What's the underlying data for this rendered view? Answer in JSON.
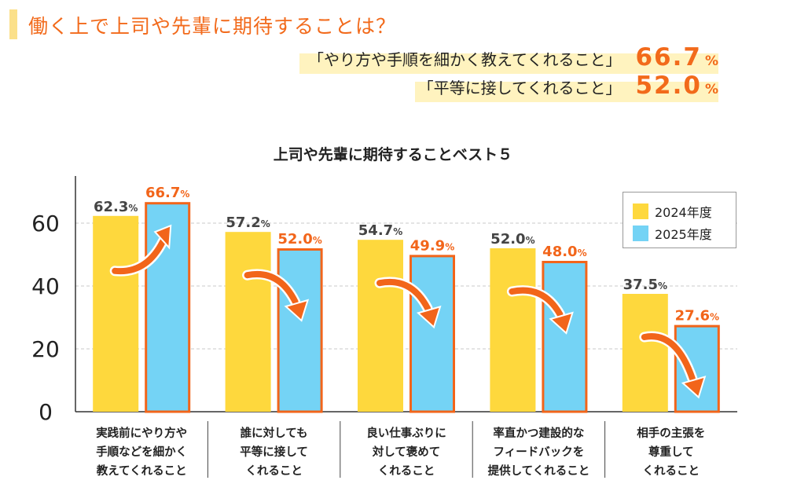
{
  "header": {
    "title": "働く上で上司や先輩に期待することは？",
    "highlights": [
      {
        "text": "「やり方や手順を細かく教えてくれること」",
        "value": "66.7",
        "unit": "%"
      },
      {
        "text": "「平等に接してくれること」",
        "value": "52.0",
        "unit": "%"
      }
    ]
  },
  "chart_data": {
    "type": "bar",
    "title": "上司や先輩に期待することベスト５",
    "categories": [
      [
        "実践前にやり方や",
        "手順などを細かく",
        "教えてくれること"
      ],
      [
        "誰に対しても",
        "平等に接して",
        "くれること"
      ],
      [
        "良い仕事ぶりに",
        "対して褒めて",
        "くれること"
      ],
      [
        "率直かつ建設的な",
        "フィードバックを",
        "提供してくれること"
      ],
      [
        "相手の主張を",
        "尊重して",
        "くれること"
      ]
    ],
    "series": [
      {
        "name": "2024年度",
        "values": [
          62.3,
          57.2,
          54.7,
          52.0,
          37.5
        ],
        "color": "#fed83d",
        "label_color": "#444444"
      },
      {
        "name": "2025年度",
        "values": [
          66.7,
          52.0,
          49.9,
          48.0,
          27.6
        ],
        "color": "#74d3f5",
        "stroke": "#f2651a",
        "label_color": "#f2651a"
      }
    ],
    "value_unit": "%",
    "yticks": [
      0,
      20,
      40,
      60
    ],
    "ylim": [
      0,
      74
    ],
    "grid": true,
    "legend_position": "top-right",
    "arrow_color": "#f2651a"
  }
}
